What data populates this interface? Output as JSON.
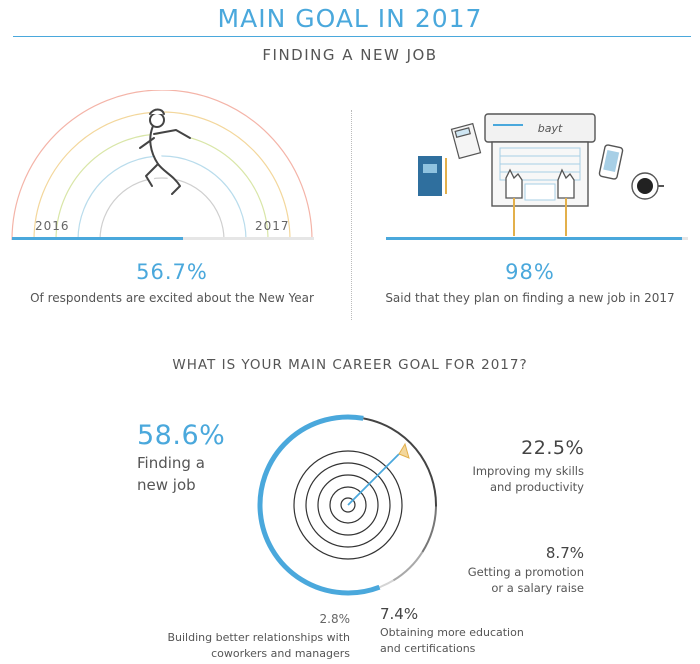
{
  "header": {
    "title": "MAIN GOAL IN 2017",
    "subtitle": "FINDING A NEW JOB"
  },
  "left_panel": {
    "year_start": "2016",
    "year_end": "2017",
    "stat": "56.7%",
    "caption": "Of respondents are excited about the New Year",
    "progress_fraction": 0.567
  },
  "right_panel": {
    "laptop_brand": "bayt",
    "stat": "98%",
    "caption": "Said that they plan on finding a new job in 2017",
    "progress_fraction": 0.98
  },
  "colors": {
    "accent": "#4aa8dc",
    "text": "#4a4a4a",
    "rainbow": [
      "#f4b4a8",
      "#f3d79c",
      "#d9e6a8",
      "#b9dcec",
      "#cfcfcf"
    ]
  },
  "chart_data": {
    "type": "pie",
    "title": "WHAT IS YOUR MAIN CAREER GOAL FOR 2017?",
    "unit": "%",
    "slices": [
      {
        "label_lines": [
          "Finding a",
          "new job"
        ],
        "value": 58.6,
        "display": "58.6%",
        "color": "#4aa8dc"
      },
      {
        "label_lines": [
          "Improving my skills",
          "and productivity"
        ],
        "value": 22.5,
        "display": "22.5%",
        "color": "#444444"
      },
      {
        "label_lines": [
          "Getting a promotion",
          "or a salary raise"
        ],
        "value": 8.7,
        "display": "8.7%",
        "color": "#777777"
      },
      {
        "label_lines": [
          "Obtaining more education",
          "and certifications"
        ],
        "value": 7.4,
        "display": "7.4%",
        "color": "#a9a9a9"
      },
      {
        "label_lines": [
          "Building better relationships with",
          "coworkers and managers"
        ],
        "value": 2.8,
        "display": "2.8%",
        "color": "#d4d4d4"
      }
    ]
  }
}
